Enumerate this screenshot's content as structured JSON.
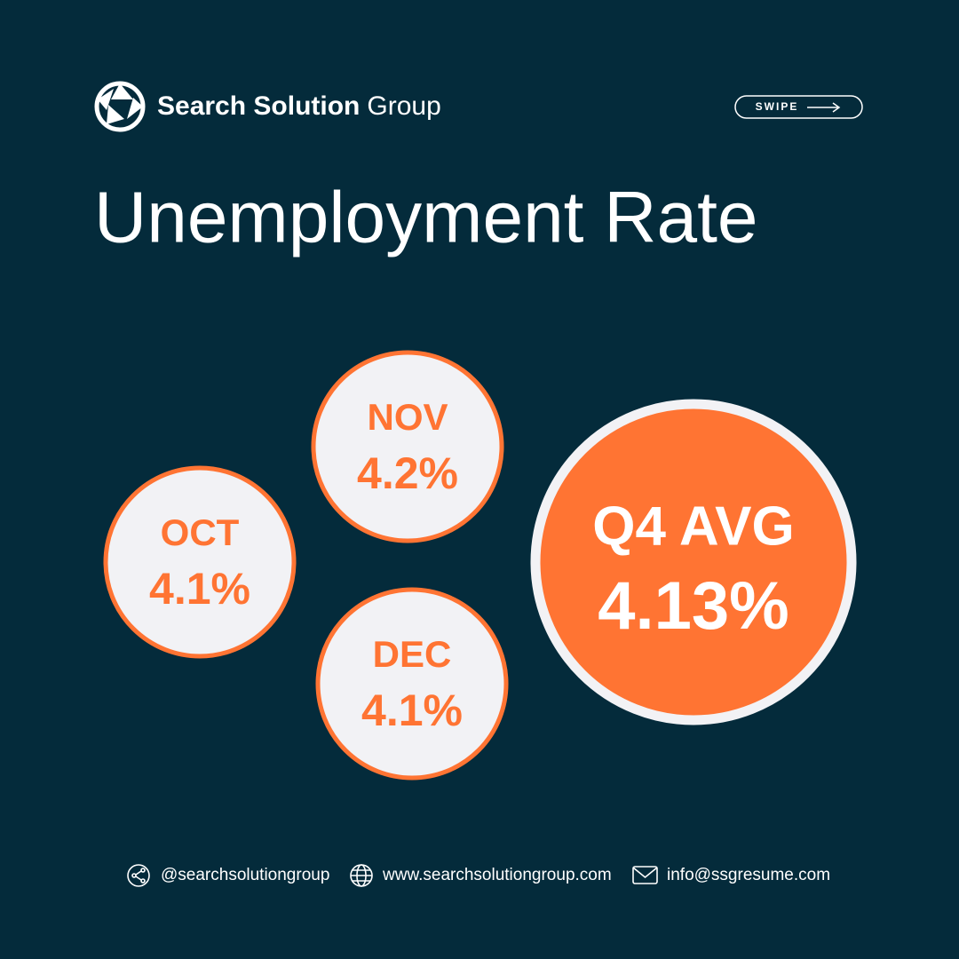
{
  "brand": {
    "name_bold": "Search Solution",
    "name_regular": "Group"
  },
  "swipe": "SWIPE",
  "title": "Unemployment Rate",
  "bubbles": [
    {
      "label": "OCT",
      "value": "4.1%"
    },
    {
      "label": "NOV",
      "value": "4.2%"
    },
    {
      "label": "DEC",
      "value": "4.1%"
    }
  ],
  "summary": {
    "label": "Q4 AVG",
    "value": "4.13%"
  },
  "footer": {
    "social": "@searchsolutiongroup",
    "website": "www.searchsolutiongroup.com",
    "email": "info@ssgresume.com"
  }
}
